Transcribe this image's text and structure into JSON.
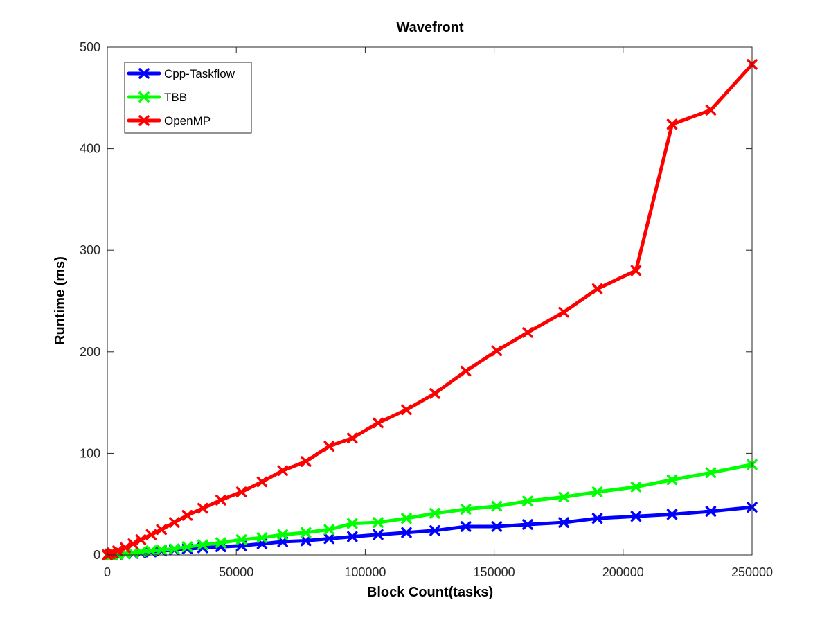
{
  "chart_data": {
    "type": "line",
    "title": "Wavefront",
    "xlabel": "Block Count(tasks)",
    "ylabel": "Runtime (ms)",
    "xlim": [
      0,
      250000
    ],
    "ylim": [
      0,
      500
    ],
    "xticks": [
      0,
      50000,
      100000,
      150000,
      200000,
      250000
    ],
    "yticks": [
      0,
      100,
      200,
      300,
      400,
      500
    ],
    "grid": false,
    "legend_position": "top-left",
    "series": [
      {
        "name": "Cpp-Taskflow",
        "color": "#0000ff",
        "marker": "x",
        "x": [
          0,
          1000,
          2000,
          4000,
          7000,
          10000,
          13000,
          17000,
          21000,
          26000,
          31000,
          37000,
          44000,
          52000,
          60000,
          68000,
          77000,
          86000,
          95000,
          105000,
          116000,
          127000,
          139000,
          151000,
          163000,
          177000,
          190000,
          205000,
          219000,
          234000,
          250000
        ],
        "y": [
          0,
          0,
          0,
          0,
          1,
          1.5,
          2,
          3,
          4,
          5,
          6,
          7,
          8,
          9,
          11,
          13,
          14,
          16,
          18,
          20,
          22,
          24,
          28,
          28,
          30,
          32,
          36,
          38,
          40,
          43,
          47
        ]
      },
      {
        "name": "TBB",
        "color": "#00ff00",
        "marker": "x",
        "x": [
          0,
          1000,
          2000,
          4000,
          7000,
          10000,
          13000,
          17000,
          21000,
          26000,
          31000,
          37000,
          44000,
          52000,
          60000,
          68000,
          77000,
          86000,
          95000,
          105000,
          116000,
          127000,
          139000,
          151000,
          163000,
          177000,
          190000,
          205000,
          219000,
          234000,
          250000
        ],
        "y": [
          0,
          0,
          0,
          0.5,
          1,
          2,
          3,
          4,
          5,
          6,
          8,
          10,
          12,
          15,
          17,
          20,
          22,
          25,
          31,
          32,
          36,
          41,
          45,
          48,
          53,
          57,
          62,
          67,
          74,
          81,
          89
        ]
      },
      {
        "name": "OpenMP",
        "color": "#ff0000",
        "marker": "x",
        "x": [
          0,
          1000,
          2000,
          4000,
          7000,
          10000,
          13000,
          17000,
          21000,
          26000,
          31000,
          37000,
          44000,
          52000,
          60000,
          68000,
          77000,
          86000,
          95000,
          105000,
          116000,
          127000,
          139000,
          151000,
          163000,
          177000,
          190000,
          205000,
          219000,
          234000,
          250000
        ],
        "y": [
          0,
          1,
          2,
          4,
          7,
          11,
          15,
          20,
          25,
          32,
          39,
          46,
          54,
          62,
          72,
          83,
          92,
          107,
          115,
          130,
          143,
          159,
          181,
          201,
          219,
          239,
          262,
          280,
          424,
          438,
          483
        ]
      }
    ]
  }
}
